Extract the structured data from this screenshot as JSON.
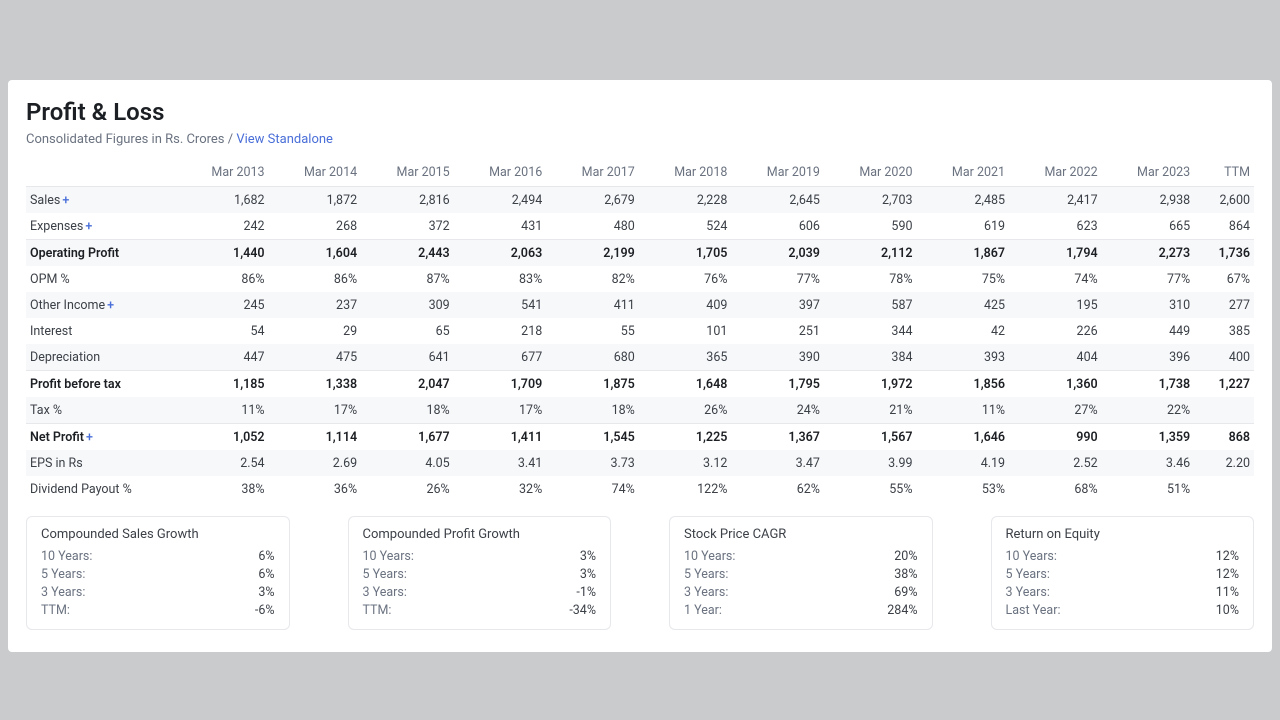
{
  "header": {
    "title": "Profit & Loss",
    "subtitle_prefix": "Consolidated Figures in Rs. Crores / ",
    "subtitle_link": "View Standalone"
  },
  "table": {
    "columns": [
      "",
      "Mar 2013",
      "Mar 2014",
      "Mar 2015",
      "Mar 2016",
      "Mar 2017",
      "Mar 2018",
      "Mar 2019",
      "Mar 2020",
      "Mar 2021",
      "Mar 2022",
      "Mar 2023",
      "TTM"
    ],
    "col_width_first": "150px",
    "rows": [
      {
        "label": "Sales",
        "plus": true,
        "bold": false,
        "shade": true,
        "values": [
          "1,682",
          "1,872",
          "2,816",
          "2,494",
          "2,679",
          "2,228",
          "2,645",
          "2,703",
          "2,485",
          "2,417",
          "2,938",
          "2,600"
        ]
      },
      {
        "label": "Expenses",
        "plus": true,
        "bold": false,
        "shade": false,
        "values": [
          "242",
          "268",
          "372",
          "431",
          "480",
          "524",
          "606",
          "590",
          "619",
          "623",
          "665",
          "864"
        ]
      },
      {
        "label": "Operating Profit",
        "plus": false,
        "bold": true,
        "shade": true,
        "sep": true,
        "values": [
          "1,440",
          "1,604",
          "2,443",
          "2,063",
          "2,199",
          "1,705",
          "2,039",
          "2,112",
          "1,867",
          "1,794",
          "2,273",
          "1,736"
        ]
      },
      {
        "label": "OPM %",
        "plus": false,
        "bold": false,
        "shade": false,
        "values": [
          "86%",
          "86%",
          "87%",
          "83%",
          "82%",
          "76%",
          "77%",
          "78%",
          "75%",
          "74%",
          "77%",
          "67%"
        ]
      },
      {
        "label": "Other Income",
        "plus": true,
        "bold": false,
        "shade": true,
        "values": [
          "245",
          "237",
          "309",
          "541",
          "411",
          "409",
          "397",
          "587",
          "425",
          "195",
          "310",
          "277"
        ]
      },
      {
        "label": "Interest",
        "plus": false,
        "bold": false,
        "shade": false,
        "values": [
          "54",
          "29",
          "65",
          "218",
          "55",
          "101",
          "251",
          "344",
          "42",
          "226",
          "449",
          "385"
        ]
      },
      {
        "label": "Depreciation",
        "plus": false,
        "bold": false,
        "shade": true,
        "values": [
          "447",
          "475",
          "641",
          "677",
          "680",
          "365",
          "390",
          "384",
          "393",
          "404",
          "396",
          "400"
        ]
      },
      {
        "label": "Profit before tax",
        "plus": false,
        "bold": true,
        "shade": false,
        "sep": true,
        "values": [
          "1,185",
          "1,338",
          "2,047",
          "1,709",
          "1,875",
          "1,648",
          "1,795",
          "1,972",
          "1,856",
          "1,360",
          "1,738",
          "1,227"
        ]
      },
      {
        "label": "Tax %",
        "plus": false,
        "bold": false,
        "shade": true,
        "values": [
          "11%",
          "17%",
          "18%",
          "17%",
          "18%",
          "26%",
          "24%",
          "21%",
          "11%",
          "27%",
          "22%",
          ""
        ]
      },
      {
        "label": "Net Profit",
        "plus": true,
        "bold": true,
        "shade": false,
        "sep": true,
        "values": [
          "1,052",
          "1,114",
          "1,677",
          "1,411",
          "1,545",
          "1,225",
          "1,367",
          "1,567",
          "1,646",
          "990",
          "1,359",
          "868"
        ]
      },
      {
        "label": "EPS in Rs",
        "plus": false,
        "bold": false,
        "shade": true,
        "values": [
          "2.54",
          "2.69",
          "4.05",
          "3.41",
          "3.73",
          "3.12",
          "3.47",
          "3.99",
          "4.19",
          "2.52",
          "3.46",
          "2.20"
        ]
      },
      {
        "label": "Dividend Payout %",
        "plus": false,
        "bold": false,
        "shade": false,
        "values": [
          "38%",
          "36%",
          "26%",
          "32%",
          "74%",
          "122%",
          "62%",
          "55%",
          "53%",
          "68%",
          "51%",
          ""
        ]
      }
    ]
  },
  "summary": [
    {
      "title": "Compounded Sales Growth",
      "rows": [
        [
          "10 Years:",
          "6%"
        ],
        [
          "5 Years:",
          "6%"
        ],
        [
          "3 Years:",
          "3%"
        ],
        [
          "TTM:",
          "-6%"
        ]
      ]
    },
    {
      "title": "Compounded Profit Growth",
      "rows": [
        [
          "10 Years:",
          "3%"
        ],
        [
          "5 Years:",
          "3%"
        ],
        [
          "3 Years:",
          "-1%"
        ],
        [
          "TTM:",
          "-34%"
        ]
      ]
    },
    {
      "title": "Stock Price CAGR",
      "rows": [
        [
          "10 Years:",
          "20%"
        ],
        [
          "5 Years:",
          "38%"
        ],
        [
          "3 Years:",
          "69%"
        ],
        [
          "1 Year:",
          "284%"
        ]
      ]
    },
    {
      "title": "Return on Equity",
      "rows": [
        [
          "10 Years:",
          "12%"
        ],
        [
          "5 Years:",
          "12%"
        ],
        [
          "3 Years:",
          "11%"
        ],
        [
          "Last Year:",
          "10%"
        ]
      ]
    }
  ],
  "colors": {
    "page_bg": "#c9cbcd",
    "card_bg": "#ffffff",
    "title": "#1c1f23",
    "muted": "#6a7280",
    "link": "#4a6fd8",
    "border": "#e6e8eb",
    "shade": "#f7f8fa",
    "text": "#3c4148"
  }
}
